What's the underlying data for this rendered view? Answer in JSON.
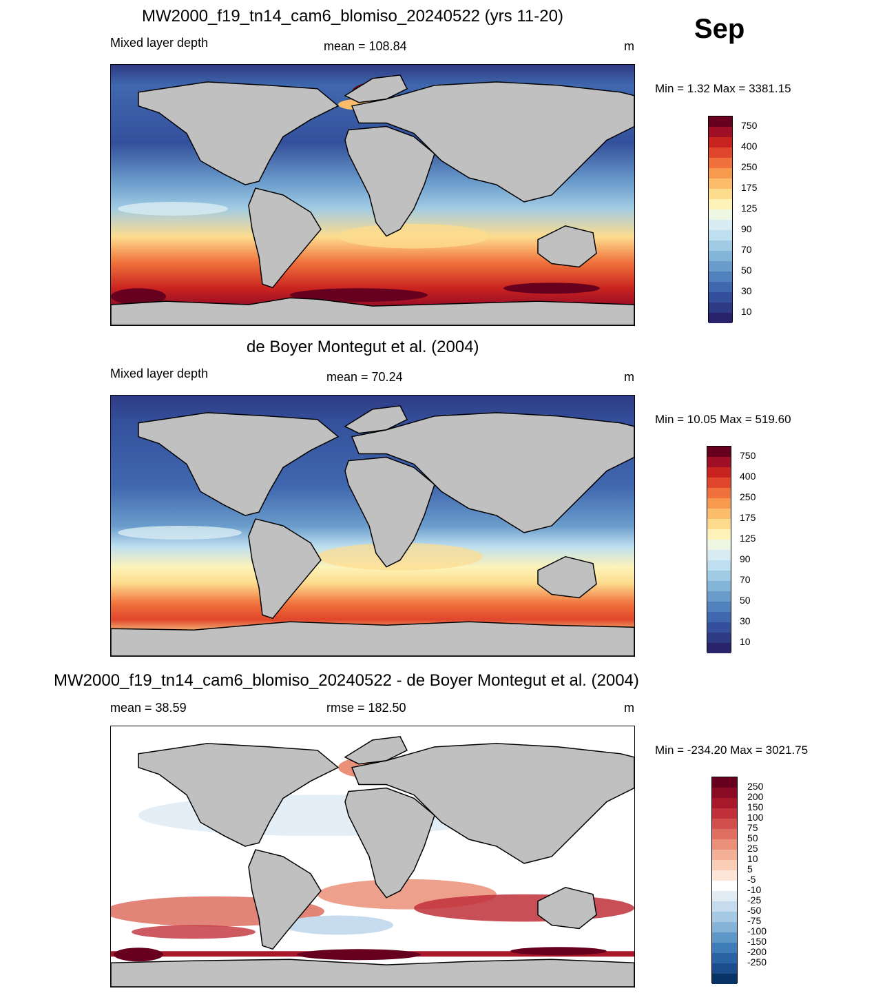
{
  "month_label": "Sep",
  "panels": [
    {
      "title": "MW2000_f19_tn14_cam6_blomiso_20240522 (yrs 11-20)",
      "left_label": "Mixed layer depth",
      "center_label": "mean = 108.84",
      "units": "m",
      "minmax": "Min =   1.32 Max = 3381.15",
      "colorbar": {
        "labels": [
          "750",
          "400",
          "250",
          "175",
          "125",
          "90",
          "70",
          "50",
          "30",
          "10"
        ],
        "colors": [
          "#67001f",
          "#9e0f25",
          "#c8231f",
          "#e0462c",
          "#f0713b",
          "#f89a4e",
          "#fbbd6a",
          "#fddc8e",
          "#fdf3b8",
          "#eef7e4",
          "#d8ecf3",
          "#bedff0",
          "#a1cbe4",
          "#83b5d8",
          "#6a9ccb",
          "#5282bd",
          "#4068af",
          "#34509c",
          "#2e3a83",
          "#29236b"
        ]
      }
    },
    {
      "title": "de Boyer Montegut et al. (2004)",
      "left_label": "Mixed layer depth",
      "center_label": "mean =  70.24",
      "units": "m",
      "minmax": "Min =  10.05 Max = 519.60",
      "colorbar": {
        "labels": [
          "750",
          "400",
          "250",
          "175",
          "125",
          "90",
          "70",
          "50",
          "30",
          "10"
        ],
        "colors": [
          "#67001f",
          "#9e0f25",
          "#c8231f",
          "#e0462c",
          "#f0713b",
          "#f89a4e",
          "#fbbd6a",
          "#fddc8e",
          "#fdf3b8",
          "#eef7e4",
          "#d8ecf3",
          "#bedff0",
          "#a1cbe4",
          "#83b5d8",
          "#6a9ccb",
          "#5282bd",
          "#4068af",
          "#34509c",
          "#2e3a83",
          "#29236b"
        ]
      }
    },
    {
      "title": "MW2000_f19_tn14_cam6_blomiso_20240522 - de Boyer Montegut et al. (2004)",
      "left_label": "mean =  38.59",
      "center_label": "rmse = 182.50",
      "units": "m",
      "minmax": "Min = -234.20 Max = 3021.75",
      "colorbar": {
        "labels": [
          "250",
          "200",
          "150",
          "100",
          "75",
          "50",
          "25",
          "10",
          "5",
          "-5",
          "-10",
          "-25",
          "-50",
          "-75",
          "-100",
          "-150",
          "-200",
          "-250"
        ],
        "colors": [
          "#67001f",
          "#8a0b25",
          "#a8182b",
          "#c0303a",
          "#d14f4d",
          "#de6f61",
          "#ea9079",
          "#f3b097",
          "#f9cdb6",
          "#fde6d8",
          "#ffffff",
          "#e1ecf5",
          "#c6dcee",
          "#a6c9e3",
          "#84b3d7",
          "#5e98c8",
          "#3f7db8",
          "#2a63a3",
          "#1b4c8c",
          "#083366"
        ]
      }
    }
  ],
  "map_colors": {
    "land": "#c0c0c0",
    "coast": "#000000",
    "deep_blue": "#34509c",
    "mid_blue": "#5282bd",
    "light_blue": "#a1cbe4",
    "pale": "#eef7e4",
    "yellow": "#fddc8e",
    "orange": "#f0713b",
    "red": "#c8231f",
    "dark_red": "#67001f",
    "white": "#ffffff",
    "diff_light_red": "#f3b097",
    "diff_red": "#c0303a",
    "diff_light_blue": "#c6dcee"
  }
}
